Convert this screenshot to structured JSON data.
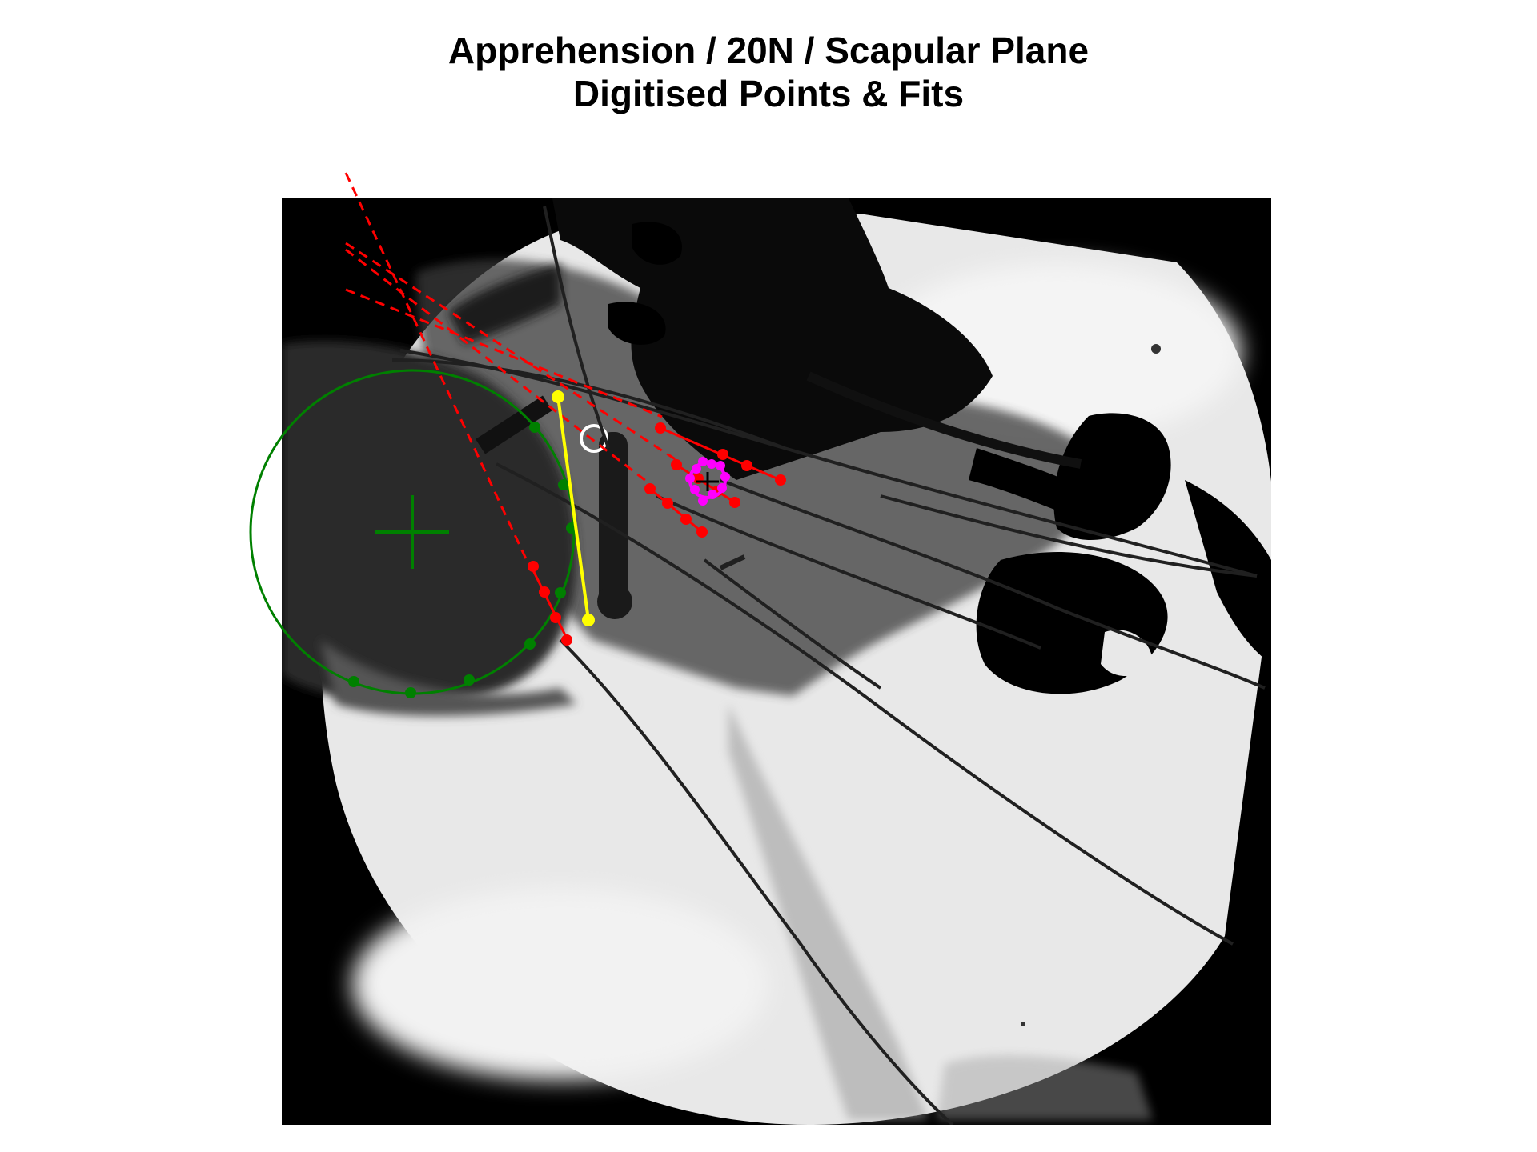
{
  "figure": {
    "title_line1": "Apprehension / 20N / Scapular Plane",
    "title_line2": "Digitised Points & Fits"
  },
  "colors": {
    "background": "#ffffff",
    "image_frame": "#000000",
    "fluoro_field": "#e6e6e6",
    "humeral_head_fit": "#008000",
    "line_fits": "#ff0000",
    "landmark_segment": "#ffff00",
    "marker_cluster": "#ff00ff"
  }
}
